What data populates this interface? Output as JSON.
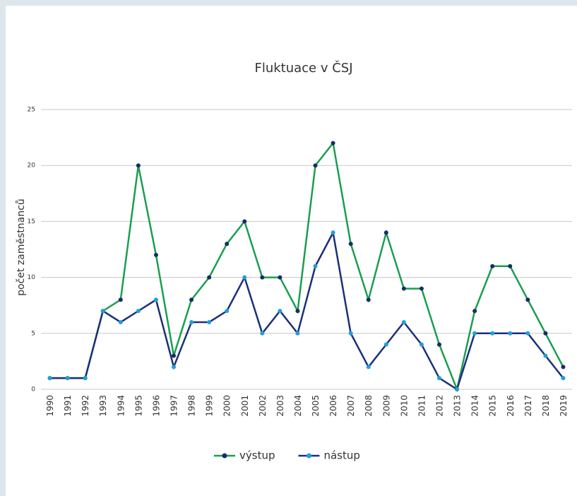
{
  "chart_data": {
    "type": "line",
    "title": "Fluktuace v ČSJ",
    "ylabel": "počet zaměstnanců",
    "categories": [
      "1990",
      "1991",
      "1992",
      "1993",
      "1994",
      "1995",
      "1996",
      "1997",
      "1998",
      "1999",
      "2000",
      "2001",
      "2002",
      "2003",
      "2004",
      "2005",
      "2006",
      "2007",
      "2008",
      "2009",
      "2010",
      "2011",
      "2012",
      "2013",
      "2014",
      "2015",
      "2016",
      "2017",
      "2018",
      "2019"
    ],
    "series": [
      {
        "name": "výstup",
        "color": "#1a9e50",
        "marker_color": "#1a2b66",
        "values": [
          1,
          1,
          1,
          7,
          8,
          20,
          12,
          3,
          8,
          10,
          13,
          15,
          10,
          10,
          7,
          20,
          22,
          13,
          8,
          14,
          9,
          9,
          4,
          0,
          7,
          11,
          11,
          8,
          5,
          2
        ]
      },
      {
        "name": "nástup",
        "color": "#1c2f7a",
        "marker_color": "#1fa0d8",
        "values": [
          1,
          1,
          1,
          7,
          6,
          7,
          8,
          2,
          6,
          6,
          7,
          10,
          5,
          7,
          5,
          11,
          14,
          5,
          2,
          4,
          6,
          4,
          1,
          0,
          5,
          5,
          5,
          5,
          3,
          1
        ]
      }
    ],
    "ylim": [
      0,
      25
    ],
    "yticks": [
      0,
      5,
      10,
      15,
      20,
      25
    ],
    "grid": true,
    "legend": "bottom"
  }
}
